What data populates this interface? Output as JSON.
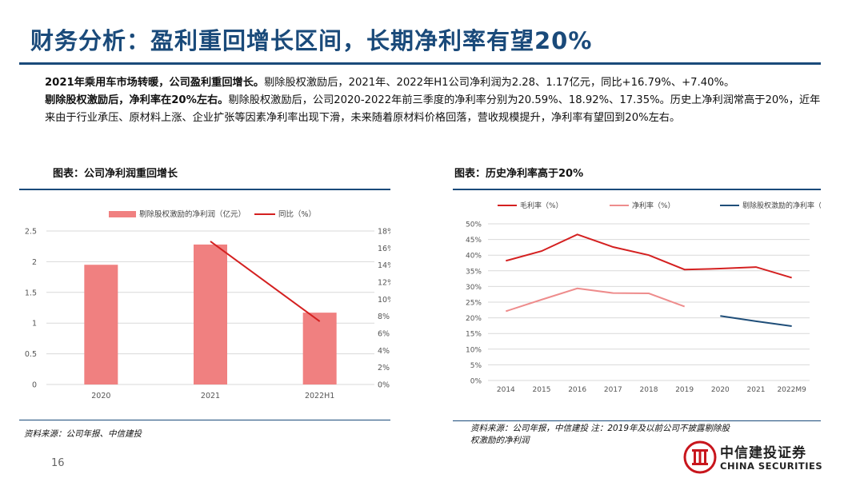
{
  "slide": {
    "title": "财务分析：盈利重回增长区间，长期净利率有望20%",
    "para1_bold": "2021年乘用车市场转暖，公司盈利重回增长。",
    "para1_text": "剔除股权激励后，2021年、2022年H1公司净利润为2.28、1.17亿元，同比+16.79%、+7.40%。",
    "para2_bold": "剔除股权激励后，净利率在20%左右。",
    "para2_text": "剔除股权激励后，公司2020-2022年前三季度的净利率分别为20.59%、18.92%、17.35%。历史上净利润常高于20%，近年来由于行业承压、原材料上涨、企业扩张等因素净利率出现下滑，未来随着原材料价格回落，营收规模提升，净利率有望回到20%左右。",
    "page_number": "16"
  },
  "left_figure": {
    "caption": "图表：公司净利润重回增长",
    "source": "资料来源：公司年报、中信建投"
  },
  "right_figure": {
    "caption": "图表：历史净利率高于20%",
    "source_line1": "资料来源：公司年报，中信建投 注：2019年及以前公司不披露剔除股",
    "source_line2": "权激励的净利润"
  },
  "logo": {
    "name_cn": "中信建投证券",
    "name_en": "CHINA SECURITIES"
  },
  "colors": {
    "brand": "#1a4a7a",
    "bar": "#f08080",
    "red_line": "#d42020",
    "pink_line": "#ee8c8c",
    "navy_line": "#1f4e79"
  },
  "chart_data": [
    {
      "type": "bar",
      "title": "图表：公司净利润重回增长",
      "categories": [
        "2020",
        "2021",
        "2022H1"
      ],
      "series": [
        {
          "name": "剔除股权激励的净利润（亿元）",
          "kind": "bar",
          "axis": "left",
          "values": [
            1.95,
            2.28,
            1.17
          ]
        },
        {
          "name": "同比（%）",
          "kind": "line",
          "axis": "right",
          "values": [
            null,
            16.79,
            7.4
          ]
        }
      ],
      "y_left": {
        "min": 0,
        "max": 2.5,
        "ticks": [
          "0",
          "0.5",
          "1",
          "1.5",
          "2",
          "2.5"
        ]
      },
      "y_right": {
        "min": 0,
        "max": 18,
        "ticks": [
          "0%",
          "2%",
          "4%",
          "6%",
          "8%",
          "10%",
          "12%",
          "14%",
          "16%",
          "18%"
        ]
      },
      "legend": "top",
      "grid": true
    },
    {
      "type": "line",
      "title": "图表：历史净利率高于20%",
      "categories": [
        "2014",
        "2015",
        "2016",
        "2017",
        "2018",
        "2019",
        "2020",
        "2021",
        "2022M9"
      ],
      "series": [
        {
          "name": "毛利率（%）",
          "values": [
            38.2,
            41.3,
            46.6,
            42.6,
            40.0,
            35.4,
            35.7,
            36.2,
            32.8
          ]
        },
        {
          "name": "净利率（%）",
          "values": [
            22.1,
            25.8,
            29.4,
            27.9,
            27.8,
            23.6,
            null,
            null,
            null
          ]
        },
        {
          "name": "剔除股权激励的净利率（%）",
          "values": [
            null,
            null,
            null,
            null,
            null,
            null,
            20.59,
            18.92,
            17.35
          ]
        }
      ],
      "y": {
        "min": 0,
        "max": 50,
        "ticks": [
          "0%",
          "5%",
          "10%",
          "15%",
          "20%",
          "25%",
          "30%",
          "35%",
          "40%",
          "45%",
          "50%"
        ]
      },
      "legend": "top",
      "grid": true
    }
  ]
}
